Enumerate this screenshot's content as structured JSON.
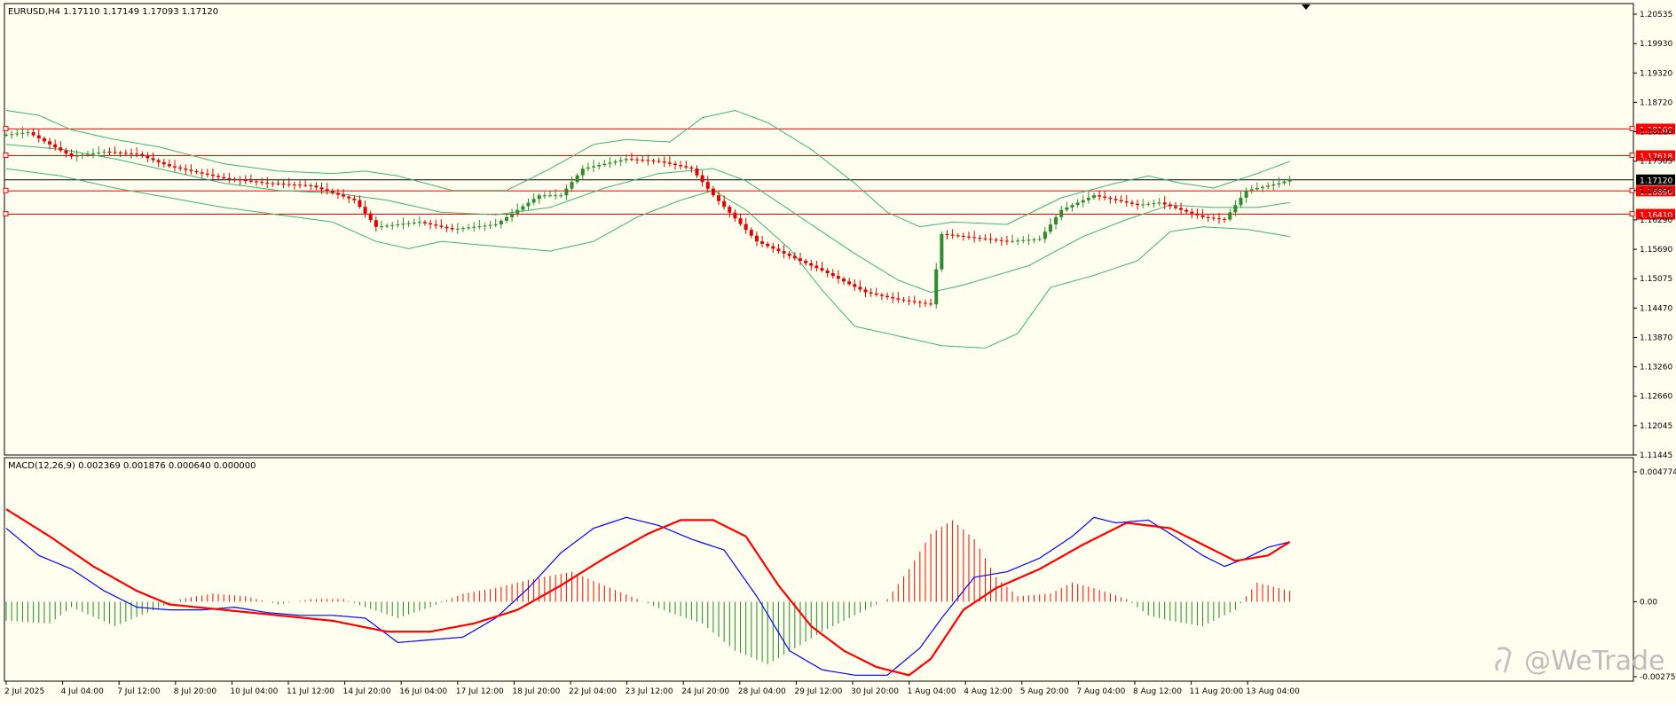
{
  "header": {
    "symbol_info": "EURUSD,H4  1.17110 1.17149 1.17093 1.17120",
    "indicator_info": "MACD(12,26,9) 0.002369 0.001876 0.000640 0.000000"
  },
  "watermark": "@WeTrade",
  "colors": {
    "background": "#fffff0",
    "frame": "#000000",
    "bull_candle": "#2e8b2e",
    "bear_candle": "#e00000",
    "bands": "#3cb371",
    "levels": "#ff0000",
    "current_price": "#000000",
    "macd_line": "#0000ff",
    "signal_line": "#ff0000",
    "hist_positive": "#ff0000",
    "hist_negative": "#228b22"
  },
  "chart_data": [
    {
      "type": "candlestick",
      "title": "EURUSD,H4",
      "ylim": [
        1.11445,
        1.20535
      ],
      "y_ticks": [
        "1.20535",
        "1.19930",
        "1.19320",
        "1.18720",
        "1.18110",
        "1.17505",
        "1.16895",
        "1.16290",
        "1.15690",
        "1.15075",
        "1.14470",
        "1.13870",
        "1.13260",
        "1.12660",
        "1.12045",
        "1.11445"
      ],
      "x_ticks": [
        "2 Jul 2025",
        "4 Jul 04:00",
        "7 Jul 12:00",
        "8 Jul 20:00",
        "10 Jul 04:00",
        "11 Jul 12:00",
        "14 Jul 20:00",
        "16 Jul 04:00",
        "17 Jul 12:00",
        "18 Jul 20:00",
        "22 Jul 04:00",
        "23 Jul 12:00",
        "24 Jul 20:00",
        "28 Jul 04:00",
        "29 Jul 12:00",
        "30 Jul 20:00",
        "1 Aug 04:00",
        "4 Aug 12:00",
        "5 Aug 20:00",
        "7 Aug 04:00",
        "8 Aug 12:00",
        "11 Aug 20:00",
        "13 Aug 04:00"
      ],
      "n_bars": 200,
      "last_close": 1.1712,
      "path": [
        [
          0,
          1.1805
        ],
        [
          4,
          1.181
        ],
        [
          12,
          1.176
        ],
        [
          18,
          1.177
        ],
        [
          24,
          1.1765
        ],
        [
          30,
          1.174
        ],
        [
          40,
          1.1715
        ],
        [
          48,
          1.1705
        ],
        [
          56,
          1.17
        ],
        [
          64,
          1.167
        ],
        [
          68,
          1.1615
        ],
        [
          76,
          1.1625
        ],
        [
          82,
          1.161
        ],
        [
          90,
          1.162
        ],
        [
          98,
          1.168
        ],
        [
          102,
          1.168
        ],
        [
          106,
          1.1735
        ],
        [
          114,
          1.1755
        ],
        [
          120,
          1.175
        ],
        [
          126,
          1.1735
        ],
        [
          130,
          1.168
        ],
        [
          138,
          1.1585
        ],
        [
          150,
          1.1525
        ],
        [
          158,
          1.148
        ],
        [
          164,
          1.1465
        ],
        [
          170,
          1.1455
        ],
        [
          172,
          1.16
        ],
        [
          176,
          1.1595
        ],
        [
          184,
          1.1585
        ],
        [
          190,
          1.159
        ],
        [
          194,
          1.165
        ],
        [
          200,
          1.168
        ],
        [
          208,
          1.166
        ],
        [
          212,
          1.1665
        ],
        [
          216,
          1.165
        ],
        [
          220,
          1.1635
        ],
        [
          224,
          1.163
        ],
        [
          228,
          1.169
        ],
        [
          234,
          1.1705
        ],
        [
          236,
          1.1712
        ]
      ],
      "horizontal_levels": [
        {
          "label": "1.18168",
          "value": 1.18168
        },
        {
          "label": "1.17618",
          "value": 1.17618
        },
        {
          "label": "1.16890",
          "value": 1.1689
        },
        {
          "label": "1.16410",
          "value": 1.1641
        }
      ],
      "current_price": {
        "label": "1.17120",
        "value": 1.1712
      },
      "bollinger_bands": {
        "upper": [
          [
            0,
            1.1855
          ],
          [
            6,
            1.1845
          ],
          [
            12,
            1.1815
          ],
          [
            20,
            1.1795
          ],
          [
            28,
            1.178
          ],
          [
            40,
            1.1745
          ],
          [
            50,
            1.173
          ],
          [
            60,
            1.1725
          ],
          [
            66,
            1.173
          ],
          [
            72,
            1.172
          ],
          [
            82,
            1.169
          ],
          [
            92,
            1.169
          ],
          [
            100,
            1.1735
          ],
          [
            108,
            1.1785
          ],
          [
            114,
            1.1795
          ],
          [
            122,
            1.179
          ],
          [
            128,
            1.184
          ],
          [
            134,
            1.1855
          ],
          [
            140,
            1.183
          ],
          [
            148,
            1.1775
          ],
          [
            156,
            1.1705
          ],
          [
            162,
            1.1645
          ],
          [
            168,
            1.1615
          ],
          [
            174,
            1.1625
          ],
          [
            184,
            1.162
          ],
          [
            194,
            1.1675
          ],
          [
            204,
            1.1705
          ],
          [
            210,
            1.172
          ],
          [
            216,
            1.1705
          ],
          [
            222,
            1.1695
          ],
          [
            230,
            1.1725
          ],
          [
            236,
            1.175
          ]
        ],
        "middle": [
          [
            0,
            1.1785
          ],
          [
            10,
            1.1775
          ],
          [
            20,
            1.1755
          ],
          [
            30,
            1.173
          ],
          [
            40,
            1.1705
          ],
          [
            50,
            1.169
          ],
          [
            60,
            1.1685
          ],
          [
            70,
            1.167
          ],
          [
            80,
            1.1645
          ],
          [
            90,
            1.164
          ],
          [
            100,
            1.1655
          ],
          [
            110,
            1.1695
          ],
          [
            120,
            1.1725
          ],
          [
            130,
            1.1735
          ],
          [
            136,
            1.171
          ],
          [
            146,
            1.1635
          ],
          [
            156,
            1.156
          ],
          [
            164,
            1.1505
          ],
          [
            170,
            1.148
          ],
          [
            176,
            1.1495
          ],
          [
            188,
            1.1535
          ],
          [
            198,
            1.1595
          ],
          [
            206,
            1.163
          ],
          [
            214,
            1.166
          ],
          [
            222,
            1.1655
          ],
          [
            230,
            1.1655
          ],
          [
            236,
            1.1665
          ]
        ],
        "lower": [
          [
            0,
            1.1735
          ],
          [
            10,
            1.172
          ],
          [
            20,
            1.1695
          ],
          [
            30,
            1.1675
          ],
          [
            40,
            1.1655
          ],
          [
            50,
            1.164
          ],
          [
            60,
            1.1625
          ],
          [
            68,
            1.1585
          ],
          [
            74,
            1.157
          ],
          [
            80,
            1.1585
          ],
          [
            90,
            1.1575
          ],
          [
            100,
            1.1565
          ],
          [
            108,
            1.1585
          ],
          [
            116,
            1.1635
          ],
          [
            124,
            1.167
          ],
          [
            130,
            1.169
          ],
          [
            136,
            1.165
          ],
          [
            144,
            1.157
          ],
          [
            150,
            1.1485
          ],
          [
            156,
            1.141
          ],
          [
            160,
            1.14
          ],
          [
            166,
            1.1385
          ],
          [
            172,
            1.137
          ],
          [
            180,
            1.1365
          ],
          [
            186,
            1.1395
          ],
          [
            192,
            1.149
          ],
          [
            200,
            1.1515
          ],
          [
            208,
            1.1545
          ],
          [
            214,
            1.1605
          ],
          [
            220,
            1.1615
          ],
          [
            228,
            1.161
          ],
          [
            236,
            1.1595
          ]
        ]
      }
    },
    {
      "type": "line",
      "title": "MACD(12,26,9)",
      "ylim": [
        -0.002757,
        0.004774
      ],
      "y_ticks": [
        "0.004774",
        "0.00",
        "-0.002757"
      ],
      "series": [
        {
          "role": "macd",
          "values": [
            [
              0,
              0.0027
            ],
            [
              6,
              0.0017
            ],
            [
              12,
              0.0012
            ],
            [
              18,
              0.0004
            ],
            [
              24,
              -0.0002
            ],
            [
              30,
              -0.0003
            ],
            [
              36,
              -0.0003
            ],
            [
              42,
              -0.0002
            ],
            [
              48,
              -0.0004
            ],
            [
              54,
              -0.0005
            ],
            [
              60,
              -0.0005
            ],
            [
              66,
              -0.0006
            ],
            [
              72,
              -0.0015
            ],
            [
              78,
              -0.0014
            ],
            [
              84,
              -0.0013
            ],
            [
              90,
              -0.0006
            ],
            [
              96,
              0.0005
            ],
            [
              102,
              0.0018
            ],
            [
              108,
              0.0027
            ],
            [
              114,
              0.0031
            ],
            [
              120,
              0.0028
            ],
            [
              126,
              0.0023
            ],
            [
              132,
              0.0019
            ],
            [
              138,
              0.0002
            ],
            [
              144,
              -0.0018
            ],
            [
              150,
              -0.0025
            ],
            [
              156,
              -0.0027
            ],
            [
              162,
              -0.0027
            ],
            [
              168,
              -0.0017
            ],
            [
              172,
              -0.0006
            ],
            [
              178,
              0.0009
            ],
            [
              184,
              0.0011
            ],
            [
              190,
              0.0016
            ],
            [
              196,
              0.0024
            ],
            [
              200,
              0.0031
            ],
            [
              204,
              0.0029
            ],
            [
              210,
              0.003
            ],
            [
              214,
              0.0025
            ],
            [
              220,
              0.0017
            ],
            [
              224,
              0.0013
            ],
            [
              228,
              0.0016
            ],
            [
              232,
              0.002
            ],
            [
              236,
              0.0022
            ]
          ]
        },
        {
          "role": "signal",
          "values": [
            [
              0,
              0.0034
            ],
            [
              8,
              0.0024
            ],
            [
              16,
              0.0013
            ],
            [
              24,
              0.0004
            ],
            [
              30,
              -0.0001
            ],
            [
              40,
              -0.0003
            ],
            [
              50,
              -0.0005
            ],
            [
              60,
              -0.0007
            ],
            [
              70,
              -0.0011
            ],
            [
              78,
              -0.0011
            ],
            [
              86,
              -0.0008
            ],
            [
              94,
              -0.0003
            ],
            [
              102,
              0.0006
            ],
            [
              110,
              0.0016
            ],
            [
              118,
              0.0025
            ],
            [
              124,
              0.003
            ],
            [
              130,
              0.003
            ],
            [
              136,
              0.0024
            ],
            [
              142,
              0.0006
            ],
            [
              148,
              -0.0009
            ],
            [
              154,
              -0.0018
            ],
            [
              160,
              -0.0024
            ],
            [
              166,
              -0.0027
            ],
            [
              170,
              -0.0021
            ],
            [
              176,
              -0.0003
            ],
            [
              182,
              0.0005
            ],
            [
              190,
              0.0012
            ],
            [
              198,
              0.0021
            ],
            [
              206,
              0.0029
            ],
            [
              214,
              0.0027
            ],
            [
              220,
              0.0021
            ],
            [
              226,
              0.0015
            ],
            [
              232,
              0.0017
            ],
            [
              236,
              0.0022
            ]
          ]
        },
        {
          "role": "histogram",
          "values": [
            [
              0,
              -0.0007
            ],
            [
              8,
              -0.0008
            ],
            [
              12,
              -0.0002
            ],
            [
              20,
              -0.0009
            ],
            [
              26,
              -0.0004
            ],
            [
              32,
              0.0001
            ],
            [
              38,
              0.0003
            ],
            [
              44,
              0.0002
            ],
            [
              50,
              -0.0001
            ],
            [
              56,
              0.0001
            ],
            [
              62,
              0.0001
            ],
            [
              66,
              -0.0002
            ],
            [
              72,
              -0.0006
            ],
            [
              78,
              -0.0002
            ],
            [
              84,
              0.0003
            ],
            [
              90,
              0.0005
            ],
            [
              96,
              0.0008
            ],
            [
              104,
              0.0011
            ],
            [
              110,
              0.0006
            ],
            [
              116,
              0.0001
            ],
            [
              122,
              -0.0004
            ],
            [
              128,
              -0.0008
            ],
            [
              134,
              -0.0018
            ],
            [
              140,
              -0.0023
            ],
            [
              146,
              -0.0016
            ],
            [
              150,
              -0.0011
            ],
            [
              156,
              -0.0005
            ],
            [
              162,
              0.0001
            ],
            [
              166,
              0.0012
            ],
            [
              170,
              0.0025
            ],
            [
              174,
              0.003
            ],
            [
              178,
              0.0023
            ],
            [
              182,
              0.0009
            ],
            [
              186,
              0.0002
            ],
            [
              192,
              0.0003
            ],
            [
              196,
              0.0007
            ],
            [
              200,
              0.0005
            ],
            [
              206,
              0.0001
            ],
            [
              210,
              -0.0005
            ],
            [
              214,
              -0.0007
            ],
            [
              220,
              -0.0009
            ],
            [
              226,
              -0.0003
            ],
            [
              230,
              0.0007
            ],
            [
              236,
              0.0004
            ]
          ]
        }
      ]
    }
  ]
}
